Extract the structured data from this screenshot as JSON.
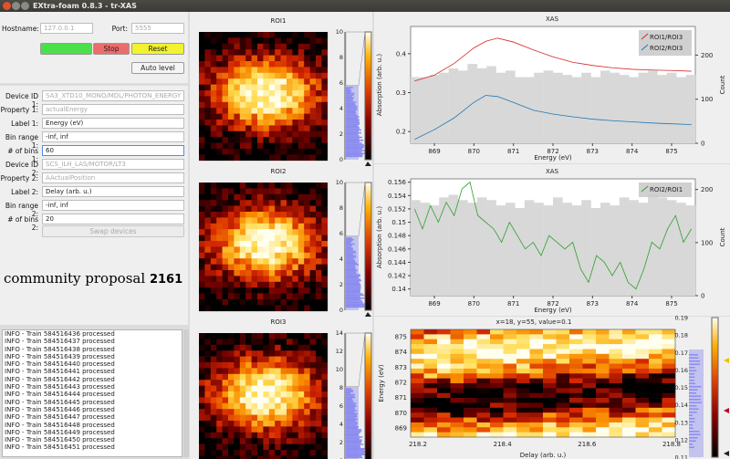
{
  "window": {
    "title": "EXtra-foam 0.8.3 - tr-XAS"
  },
  "connection": {
    "hostname_label": "Hostname:",
    "hostname_value": "127.0.0.1",
    "port_label": "Port:",
    "port_value": "5555"
  },
  "buttons": {
    "start": "",
    "stop": "Stop",
    "reset": "Reset",
    "auto_level": "Auto level",
    "swap": "Swap devices"
  },
  "form": {
    "device1_label": "Device ID 1:",
    "device1_value": "SA3_XTD10_MONO/MDL/PHOTON_ENERGY",
    "property1_label": "Property 1:",
    "property1_value": "actualEnergy",
    "label1_label": "Label 1:",
    "label1_value": "Energy (eV)",
    "binrange1_label": "Bin range 1:",
    "binrange1_value": "-inf, inf",
    "nbins1_label": "# of bins 1:",
    "nbins1_value": "60",
    "device2_label": "Device ID 2:",
    "device2_value": "SCS_ILH_LAS/MOTOR/LT3",
    "property2_label": "Property 2:",
    "property2_value": "AActualPosition",
    "label2_label": "Label 2:",
    "label2_value": "Delay (arb. u.)",
    "binrange2_label": "Bin range 2:",
    "binrange2_value": "-inf, inf",
    "nbins2_label": "# of bins 2:",
    "nbins2_value": "20"
  },
  "overlay": {
    "text": "community proposal",
    "number": "2161"
  },
  "log": {
    "lines": [
      "INFO - Train 584516436 processed",
      "INFO - Train 584516437 processed",
      "INFO - Train 584516438 processed",
      "INFO - Train 584516439 processed",
      "INFO - Train 584516440 processed",
      "INFO - Train 584516441 processed",
      "INFO - Train 584516442 processed",
      "INFO - Train 584516443 processed",
      "INFO - Train 584516444 processed",
      "INFO - Train 584516445 processed",
      "INFO - Train 584516446 processed",
      "INFO - Train 584516447 processed",
      "INFO - Train 584516448 processed",
      "INFO - Train 584516449 processed",
      "INFO - Train 584516450 processed",
      "INFO - Train 584516451 processed"
    ]
  },
  "roi": [
    {
      "title": "ROI1",
      "hist_ticks": [
        "0",
        "2",
        "4",
        "6",
        "8",
        "10"
      ],
      "seed": 1
    },
    {
      "title": "ROI2",
      "hist_ticks": [
        "0",
        "2",
        "4",
        "6",
        "8",
        "10"
      ],
      "seed": 2
    },
    {
      "title": "ROI3",
      "hist_ticks": [
        "0",
        "2",
        "4",
        "6",
        "8",
        "10",
        "12",
        "14"
      ],
      "seed": 3
    }
  ],
  "colors": {
    "red_curve": "#d62728",
    "blue_curve": "#1f77b4",
    "green_curve": "#2ca02c",
    "hist_bar": "#8c8cf0",
    "count_bar": "#d8d8d8"
  },
  "chart_data": [
    {
      "type": "line",
      "title": "XAS",
      "xlabel": "Energy (eV)",
      "ylabel": "Absorption (arb. u.)",
      "y2label": "Count",
      "xticks": [
        "869",
        "870",
        "871",
        "872",
        "873",
        "874",
        "875"
      ],
      "yticks": [
        "0.2",
        "0.3",
        "0.4"
      ],
      "y2ticks": [
        "0",
        "100",
        "200"
      ],
      "xlim": [
        868.4,
        875.6
      ],
      "ylim": [
        0.17,
        0.47
      ],
      "y2lim": [
        0,
        265
      ],
      "legend": [
        "ROI1/ROI3",
        "ROI2/ROI3"
      ],
      "series": [
        {
          "name": "ROI1/ROI3",
          "color": "red",
          "x": [
            868.5,
            869.0,
            869.5,
            870.0,
            870.3,
            870.6,
            871.0,
            871.5,
            872.0,
            872.5,
            873.0,
            873.5,
            874.0,
            874.5,
            875.0,
            875.5
          ],
          "values": [
            0.33,
            0.345,
            0.375,
            0.415,
            0.432,
            0.44,
            0.43,
            0.41,
            0.392,
            0.378,
            0.37,
            0.364,
            0.36,
            0.358,
            0.357,
            0.355
          ]
        },
        {
          "name": "ROI2/ROI3",
          "color": "blue",
          "x": [
            868.5,
            869.0,
            869.5,
            870.0,
            870.3,
            870.6,
            871.0,
            871.5,
            872.0,
            872.5,
            873.0,
            873.5,
            874.0,
            874.5,
            875.0,
            875.5
          ],
          "values": [
            0.18,
            0.205,
            0.235,
            0.275,
            0.293,
            0.29,
            0.275,
            0.255,
            0.245,
            0.238,
            0.232,
            0.228,
            0.225,
            0.222,
            0.22,
            0.218
          ]
        }
      ],
      "counts": [
        150,
        150,
        155,
        160,
        170,
        165,
        180,
        170,
        175,
        160,
        165,
        150,
        150,
        160,
        165,
        160,
        155,
        150,
        160,
        150,
        165,
        160,
        155,
        150,
        160,
        165,
        155,
        160,
        150,
        155
      ]
    },
    {
      "type": "line",
      "title": "XAS",
      "xlabel": "Energy (eV)",
      "ylabel": "Absorption (arb. u.)",
      "y2label": "Count",
      "xticks": [
        "869",
        "870",
        "871",
        "872",
        "873",
        "874",
        "875"
      ],
      "yticks": [
        "0.14",
        "0.142",
        "0.144",
        "0.146",
        "0.148",
        "0.15",
        "0.152",
        "0.154",
        "0.156"
      ],
      "y2ticks": [
        "0",
        "100",
        "200"
      ],
      "xlim": [
        868.4,
        875.6
      ],
      "ylim": [
        0.139,
        0.1565
      ],
      "y2lim": [
        0,
        220
      ],
      "legend": [
        "ROI2/ROI1"
      ],
      "series": [
        {
          "name": "ROI2/ROI1",
          "color": "green",
          "x": [
            868.5,
            868.7,
            868.9,
            869.1,
            869.3,
            869.5,
            869.7,
            869.9,
            870.1,
            870.3,
            870.5,
            870.7,
            870.9,
            871.1,
            871.3,
            871.5,
            871.7,
            871.9,
            872.1,
            872.3,
            872.5,
            872.7,
            872.9,
            873.1,
            873.3,
            873.5,
            873.7,
            873.9,
            874.1,
            874.3,
            874.5,
            874.7,
            874.9,
            875.1,
            875.3,
            875.5
          ],
          "values": [
            0.152,
            0.149,
            0.1525,
            0.15,
            0.153,
            0.151,
            0.155,
            0.156,
            0.151,
            0.15,
            0.149,
            0.147,
            0.15,
            0.148,
            0.146,
            0.147,
            0.145,
            0.148,
            0.147,
            0.146,
            0.147,
            0.143,
            0.141,
            0.145,
            0.144,
            0.142,
            0.144,
            0.141,
            0.14,
            0.143,
            0.147,
            0.146,
            0.149,
            0.151,
            0.147,
            0.149
          ]
        }
      ],
      "counts": [
        180,
        175,
        170,
        185,
        190,
        180,
        175,
        185,
        180,
        170,
        175,
        165,
        180,
        175,
        170,
        185,
        175,
        170,
        180,
        165,
        175,
        170,
        185,
        180,
        175,
        190,
        185,
        180,
        175,
        170
      ]
    },
    {
      "type": "heatmap",
      "title": "x=18, y=55, value=0.1",
      "xlabel": "Delay (arb. u.)",
      "ylabel": "Energy (eV)",
      "xticks": [
        "218.2",
        "218.4",
        "218.6",
        "218.8"
      ],
      "yticks": [
        "869",
        "870",
        "871",
        "872",
        "873",
        "874",
        "875"
      ],
      "colorbar_ticks": [
        "0.11",
        "0.12",
        "0.13",
        "0.14",
        "0.15",
        "0.16",
        "0.17",
        "0.18",
        "0.19"
      ]
    }
  ]
}
